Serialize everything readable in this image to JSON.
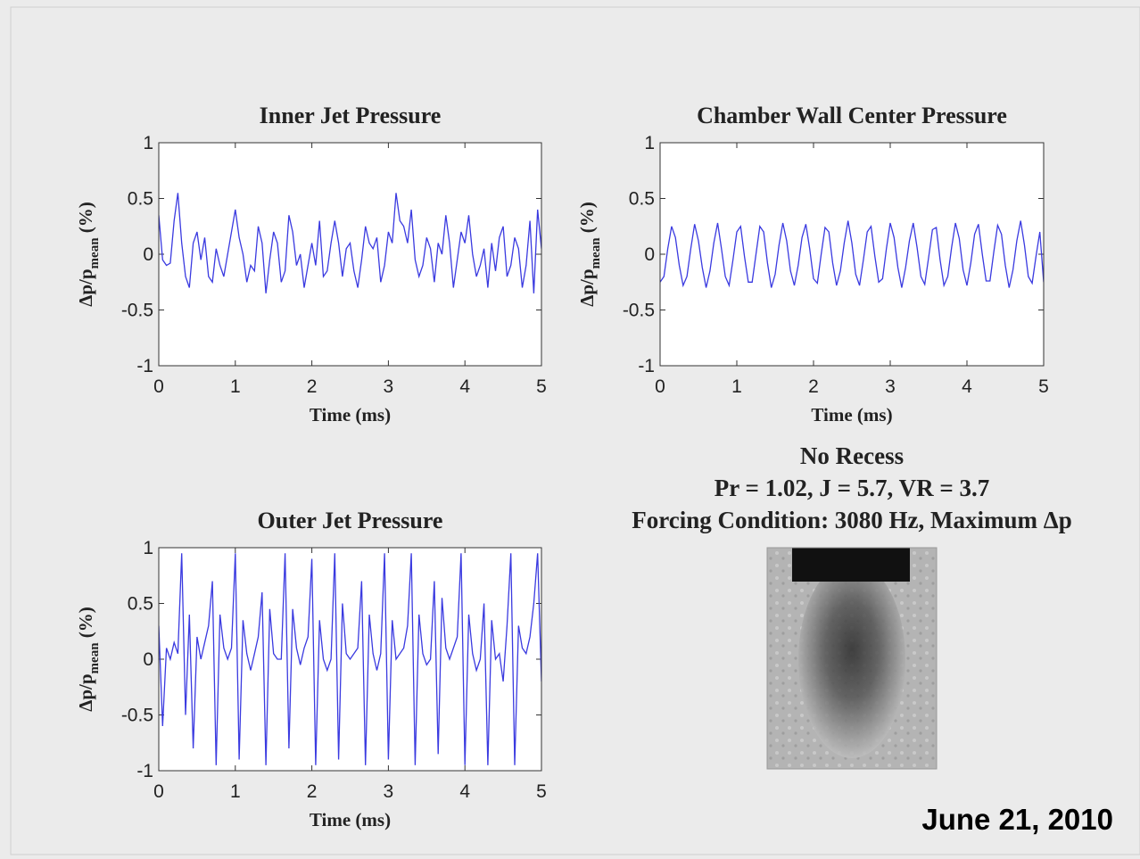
{
  "chart_data": [
    {
      "type": "line",
      "title": "Inner Jet Pressure",
      "xlabel": "Time (ms)",
      "ylabel_parts": [
        "Δp/p",
        "mean",
        " (%)"
      ],
      "color": "#3a3ae0",
      "xlim": [
        0,
        5
      ],
      "xticks": [
        0,
        1,
        2,
        3,
        4,
        5
      ],
      "ylim": [
        -1,
        1
      ],
      "yticks": [
        -1,
        -0.5,
        0,
        0.5,
        1
      ],
      "grid": false,
      "x": [
        0,
        0.05,
        0.1,
        0.15,
        0.2,
        0.25,
        0.3,
        0.35,
        0.4,
        0.45,
        0.5,
        0.55,
        0.6,
        0.65,
        0.7,
        0.75,
        0.8,
        0.85,
        0.9,
        0.95,
        1,
        1.05,
        1.1,
        1.15,
        1.2,
        1.25,
        1.3,
        1.35,
        1.4,
        1.45,
        1.5,
        1.55,
        1.6,
        1.65,
        1.7,
        1.75,
        1.8,
        1.85,
        1.9,
        1.95,
        2,
        2.05,
        2.1,
        2.15,
        2.2,
        2.25,
        2.3,
        2.35,
        2.4,
        2.45,
        2.5,
        2.55,
        2.6,
        2.65,
        2.7,
        2.75,
        2.8,
        2.85,
        2.9,
        2.95,
        3,
        3.05,
        3.1,
        3.15,
        3.2,
        3.25,
        3.3,
        3.35,
        3.4,
        3.45,
        3.5,
        3.55,
        3.6,
        3.65,
        3.7,
        3.75,
        3.8,
        3.85,
        3.9,
        3.95,
        4,
        4.05,
        4.1,
        4.15,
        4.2,
        4.25,
        4.3,
        4.35,
        4.4,
        4.45,
        4.5,
        4.55,
        4.6,
        4.65,
        4.7,
        4.75,
        4.8,
        4.85,
        4.9,
        4.95,
        5
      ],
      "values": [
        0.35,
        -0.05,
        -0.1,
        -0.08,
        0.3,
        0.55,
        0.1,
        -0.2,
        -0.3,
        0.1,
        0.2,
        -0.05,
        0.15,
        -0.2,
        -0.25,
        0.05,
        -0.1,
        -0.2,
        0,
        0.2,
        0.4,
        0.15,
        0,
        -0.25,
        -0.1,
        -0.15,
        0.25,
        0.1,
        -0.35,
        -0.05,
        0.2,
        0.1,
        -0.25,
        -0.15,
        0.35,
        0.2,
        -0.1,
        0,
        -0.3,
        -0.1,
        0.1,
        -0.1,
        0.3,
        -0.2,
        -0.15,
        0.1,
        0.3,
        0.1,
        -0.2,
        0.05,
        0.1,
        -0.15,
        -0.3,
        -0.05,
        0.25,
        0.1,
        0.05,
        0.15,
        -0.25,
        -0.1,
        0.2,
        0.1,
        0.55,
        0.3,
        0.25,
        0.1,
        0.4,
        -0.05,
        -0.2,
        -0.1,
        0.15,
        0.05,
        -0.25,
        0.1,
        0,
        0.35,
        0.1,
        -0.3,
        -0.05,
        0.2,
        0.1,
        0.35,
        0,
        -0.2,
        -0.1,
        0.05,
        -0.3,
        0.1,
        -0.15,
        0.15,
        0.25,
        -0.2,
        -0.1,
        0.15,
        0.05,
        -0.3,
        -0.1,
        0.3,
        -0.35,
        0.4,
        0.05
      ]
    },
    {
      "type": "line",
      "title": "Chamber Wall Center Pressure",
      "xlabel": "Time (ms)",
      "ylabel_parts": [
        "Δp/p",
        "mean",
        " (%)"
      ],
      "color": "#3a3ae0",
      "xlim": [
        0,
        5
      ],
      "xticks": [
        0,
        1,
        2,
        3,
        4,
        5
      ],
      "ylim": [
        -1,
        1
      ],
      "yticks": [
        -1,
        -0.5,
        0,
        0.5,
        1
      ],
      "grid": false,
      "x": [
        0,
        0.05,
        0.1,
        0.15,
        0.2,
        0.25,
        0.3,
        0.35,
        0.4,
        0.45,
        0.5,
        0.55,
        0.6,
        0.65,
        0.7,
        0.75,
        0.8,
        0.85,
        0.9,
        0.95,
        1,
        1.05,
        1.1,
        1.15,
        1.2,
        1.25,
        1.3,
        1.35,
        1.4,
        1.45,
        1.5,
        1.55,
        1.6,
        1.65,
        1.7,
        1.75,
        1.8,
        1.85,
        1.9,
        1.95,
        2,
        2.05,
        2.1,
        2.15,
        2.2,
        2.25,
        2.3,
        2.35,
        2.4,
        2.45,
        2.5,
        2.55,
        2.6,
        2.65,
        2.7,
        2.75,
        2.8,
        2.85,
        2.9,
        2.95,
        3,
        3.05,
        3.1,
        3.15,
        3.2,
        3.25,
        3.3,
        3.35,
        3.4,
        3.45,
        3.5,
        3.55,
        3.6,
        3.65,
        3.7,
        3.75,
        3.8,
        3.85,
        3.9,
        3.95,
        4,
        4.05,
        4.1,
        4.15,
        4.2,
        4.25,
        4.3,
        4.35,
        4.4,
        4.45,
        4.5,
        4.55,
        4.6,
        4.65,
        4.7,
        4.75,
        4.8,
        4.85,
        4.9,
        4.95,
        5
      ],
      "values": [
        -0.25,
        -0.2,
        0.05,
        0.25,
        0.15,
        -0.1,
        -0.28,
        -0.2,
        0.05,
        0.27,
        0.12,
        -0.12,
        -0.3,
        -0.15,
        0.1,
        0.28,
        0.05,
        -0.2,
        -0.28,
        -0.05,
        0.2,
        0.25,
        -0.02,
        -0.25,
        -0.25,
        0,
        0.25,
        0.2,
        -0.08,
        -0.3,
        -0.18,
        0.08,
        0.28,
        0.12,
        -0.15,
        -0.28,
        -0.1,
        0.15,
        0.27,
        0.05,
        -0.22,
        -0.26,
        0,
        0.24,
        0.2,
        -0.08,
        -0.28,
        -0.15,
        0.1,
        0.3,
        0.1,
        -0.18,
        -0.28,
        -0.05,
        0.2,
        0.25,
        -0.02,
        -0.25,
        -0.22,
        0.05,
        0.28,
        0.15,
        -0.12,
        -0.3,
        -0.12,
        0.12,
        0.28,
        0.06,
        -0.2,
        -0.27,
        -0.03,
        0.22,
        0.24,
        -0.05,
        -0.28,
        -0.2,
        0.06,
        0.28,
        0.14,
        -0.14,
        -0.28,
        -0.08,
        0.18,
        0.27,
        0,
        -0.24,
        -0.24,
        0.02,
        0.26,
        0.18,
        -0.1,
        -0.3,
        -0.14,
        0.12,
        0.3,
        0.08,
        -0.2,
        -0.26,
        -0.02,
        0.2,
        -0.25
      ]
    },
    {
      "type": "line",
      "title": "Outer Jet Pressure",
      "xlabel": "Time (ms)",
      "ylabel_parts": [
        "Δp/p",
        "mean",
        " (%)"
      ],
      "color": "#3a3ae0",
      "xlim": [
        0,
        5
      ],
      "xticks": [
        0,
        1,
        2,
        3,
        4,
        5
      ],
      "ylim": [
        -1,
        1
      ],
      "yticks": [
        -1,
        -0.5,
        0,
        0.5,
        1
      ],
      "grid": false,
      "x": [
        0,
        0.05,
        0.1,
        0.15,
        0.2,
        0.25,
        0.3,
        0.35,
        0.4,
        0.45,
        0.5,
        0.55,
        0.6,
        0.65,
        0.7,
        0.75,
        0.8,
        0.85,
        0.9,
        0.95,
        1,
        1.05,
        1.1,
        1.15,
        1.2,
        1.25,
        1.3,
        1.35,
        1.4,
        1.45,
        1.5,
        1.55,
        1.6,
        1.65,
        1.7,
        1.75,
        1.8,
        1.85,
        1.9,
        1.95,
        2,
        2.05,
        2.1,
        2.15,
        2.2,
        2.25,
        2.3,
        2.35,
        2.4,
        2.45,
        2.5,
        2.55,
        2.6,
        2.65,
        2.7,
        2.75,
        2.8,
        2.85,
        2.9,
        2.95,
        3,
        3.05,
        3.1,
        3.15,
        3.2,
        3.25,
        3.3,
        3.35,
        3.4,
        3.45,
        3.5,
        3.55,
        3.6,
        3.65,
        3.7,
        3.75,
        3.8,
        3.85,
        3.9,
        3.95,
        4,
        4.05,
        4.1,
        4.15,
        4.2,
        4.25,
        4.3,
        4.35,
        4.4,
        4.45,
        4.5,
        4.55,
        4.6,
        4.65,
        4.7,
        4.75,
        4.8,
        4.85,
        4.9,
        4.95,
        5
      ],
      "values": [
        0.3,
        -0.6,
        0.1,
        0,
        0.15,
        0.05,
        0.95,
        -0.5,
        0.4,
        -0.8,
        0.2,
        0,
        0.15,
        0.3,
        0.7,
        -0.95,
        0.4,
        0.1,
        0,
        0.1,
        0.95,
        -0.9,
        0.35,
        0.05,
        -0.1,
        0.05,
        0.2,
        0.6,
        -0.95,
        0.45,
        0.05,
        0,
        0,
        0.95,
        -0.8,
        0.45,
        0.1,
        -0.05,
        0.1,
        0.2,
        0.9,
        -0.95,
        0.35,
        0,
        -0.1,
        0,
        0.95,
        -0.9,
        0.5,
        0.05,
        0,
        0.05,
        0.1,
        0.7,
        -0.95,
        0.4,
        0.05,
        -0.1,
        0.05,
        0.95,
        -0.9,
        0.35,
        0,
        0.05,
        0.1,
        0.3,
        0.95,
        -0.95,
        0.4,
        0.05,
        -0.05,
        0,
        0.7,
        -0.85,
        0.55,
        0.1,
        0,
        0.1,
        0.2,
        0.95,
        -0.95,
        0.4,
        0.05,
        -0.1,
        0,
        0.5,
        -0.95,
        0.35,
        0,
        0.05,
        -0.2,
        0.3,
        0.95,
        -0.95,
        0.3,
        0.1,
        0.05,
        0.2,
        0.5,
        0.95,
        -0.2
      ]
    }
  ],
  "caption": [
    "No Recess",
    "Pr = 1.02, J = 5.7, VR = 3.7",
    "Forcing Condition: 3080 Hz, Maximum Δp"
  ],
  "date": "June 21, 2010"
}
